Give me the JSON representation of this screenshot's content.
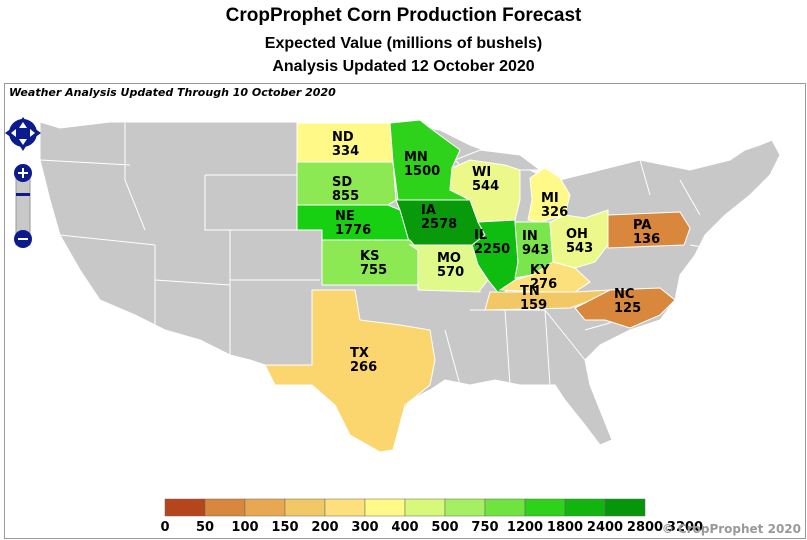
{
  "title": "CropProphet Corn Production Forecast",
  "subtitle": "Expected Value (millions of bushels)",
  "updated": "Analysis Updated 12 October 2020",
  "weather_note": "Weather Analysis Updated Through 10 October 2020",
  "copyright": "© CropProphet 2020",
  "controls": {
    "pan": "pan-arrows-icon",
    "zoom_in": "zoom-in-icon",
    "zoom_out": "zoom-out-icon"
  },
  "colors": {
    "non_forecast_state": "#c8c8c8",
    "state_border": "#ffffff"
  },
  "legend": {
    "ticks": [
      "0",
      "50",
      "100",
      "150",
      "200",
      "300",
      "400",
      "500",
      "750",
      "1200",
      "1800",
      "2400",
      "2800",
      "3200"
    ],
    "colors": [
      "#b5451b",
      "#c9662c",
      "#d8873c",
      "#e8a852",
      "#f2c765",
      "#fbe07c",
      "#fffa88",
      "#d6f97a",
      "#a6ef62",
      "#6fe33f",
      "#2ed21a",
      "#12b50e",
      "#07960a",
      "#037506"
    ]
  },
  "states": [
    {
      "abbr": "ND",
      "value": "334",
      "color": "#fffa88"
    },
    {
      "abbr": "MN",
      "value": "1500",
      "color": "#2ed21a"
    },
    {
      "abbr": "SD",
      "value": "855",
      "color": "#8ce853"
    },
    {
      "abbr": "WI",
      "value": "544",
      "color": "#ecf98a"
    },
    {
      "abbr": "MI",
      "value": "326",
      "color": "#fffa88"
    },
    {
      "abbr": "NE",
      "value": "1776",
      "color": "#17d012"
    },
    {
      "abbr": "IA",
      "value": "2578",
      "color": "#089a0a"
    },
    {
      "abbr": "IL",
      "value": "2250",
      "color": "#0fbd10"
    },
    {
      "abbr": "IN",
      "value": "943",
      "color": "#7be64c"
    },
    {
      "abbr": "OH",
      "value": "543",
      "color": "#ecf98a"
    },
    {
      "abbr": "PA",
      "value": "136",
      "color": "#d8873c"
    },
    {
      "abbr": "KS",
      "value": "755",
      "color": "#8ce853"
    },
    {
      "abbr": "MO",
      "value": "570",
      "color": "#dff98a"
    },
    {
      "abbr": "KY",
      "value": "276",
      "color": "#fbe07c"
    },
    {
      "abbr": "TN",
      "value": "159",
      "color": "#f2c765"
    },
    {
      "abbr": "NC",
      "value": "125",
      "color": "#d8873c"
    },
    {
      "abbr": "TX",
      "value": "266",
      "color": "#fbd66e"
    }
  ]
}
